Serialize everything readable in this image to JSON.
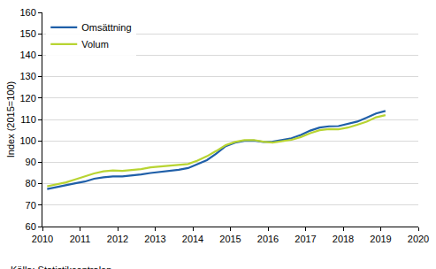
{
  "chart_data": {
    "type": "line",
    "y_label": "Index (2015=100)",
    "source": "Källa: Statistikcentralen",
    "x": [
      2010.125,
      2010.375,
      2010.625,
      2010.875,
      2011.125,
      2011.375,
      2011.625,
      2011.875,
      2012.125,
      2012.375,
      2012.625,
      2012.875,
      2013.125,
      2013.375,
      2013.625,
      2013.875,
      2014.125,
      2014.375,
      2014.625,
      2014.875,
      2015.125,
      2015.375,
      2015.625,
      2015.875,
      2016.125,
      2016.375,
      2016.625,
      2016.875,
      2017.125,
      2017.375,
      2017.625,
      2017.875,
      2018.125,
      2018.375,
      2018.625,
      2018.875,
      2019.125
    ],
    "series": [
      {
        "name": "Omsättning",
        "color": "#1f5fa8",
        "values": [
          77.5,
          78.5,
          79.3,
          80.2,
          81,
          82.3,
          83,
          83.4,
          83.4,
          83.7,
          84.3,
          85,
          85.4,
          85.8,
          86.5,
          87.3,
          89,
          91,
          94,
          97.5,
          99.2,
          100,
          100.1,
          99.5,
          99.6,
          100.3,
          101.2,
          102.8,
          104.8,
          106.2,
          106.8,
          106.9,
          107.8,
          109,
          110.8,
          112.8,
          114
        ]
      },
      {
        "name": "Volum",
        "color": "#b8d432",
        "values": [
          78.8,
          79.7,
          80.6,
          82,
          83.4,
          84.8,
          85.8,
          86.2,
          86,
          86.4,
          86.8,
          87.6,
          88,
          88.2,
          88.7,
          89.2,
          90.8,
          92.8,
          95.3,
          98,
          99.5,
          100.3,
          100.4,
          99.6,
          99.2,
          99.8,
          100.5,
          101.8,
          103.6,
          105,
          105.5,
          105.4,
          106.2,
          107.5,
          109,
          111,
          112
        ]
      }
    ],
    "xlim": [
      2010,
      2020
    ],
    "xticks": [
      2010,
      2011,
      2012,
      2013,
      2014,
      2015,
      2016,
      2017,
      2018,
      2019,
      2020
    ],
    "ylim": [
      60,
      160
    ],
    "yticks": [
      60,
      70,
      80,
      90,
      100,
      110,
      120,
      130,
      140,
      150,
      160
    ],
    "grid": true,
    "legend": "top-left"
  }
}
